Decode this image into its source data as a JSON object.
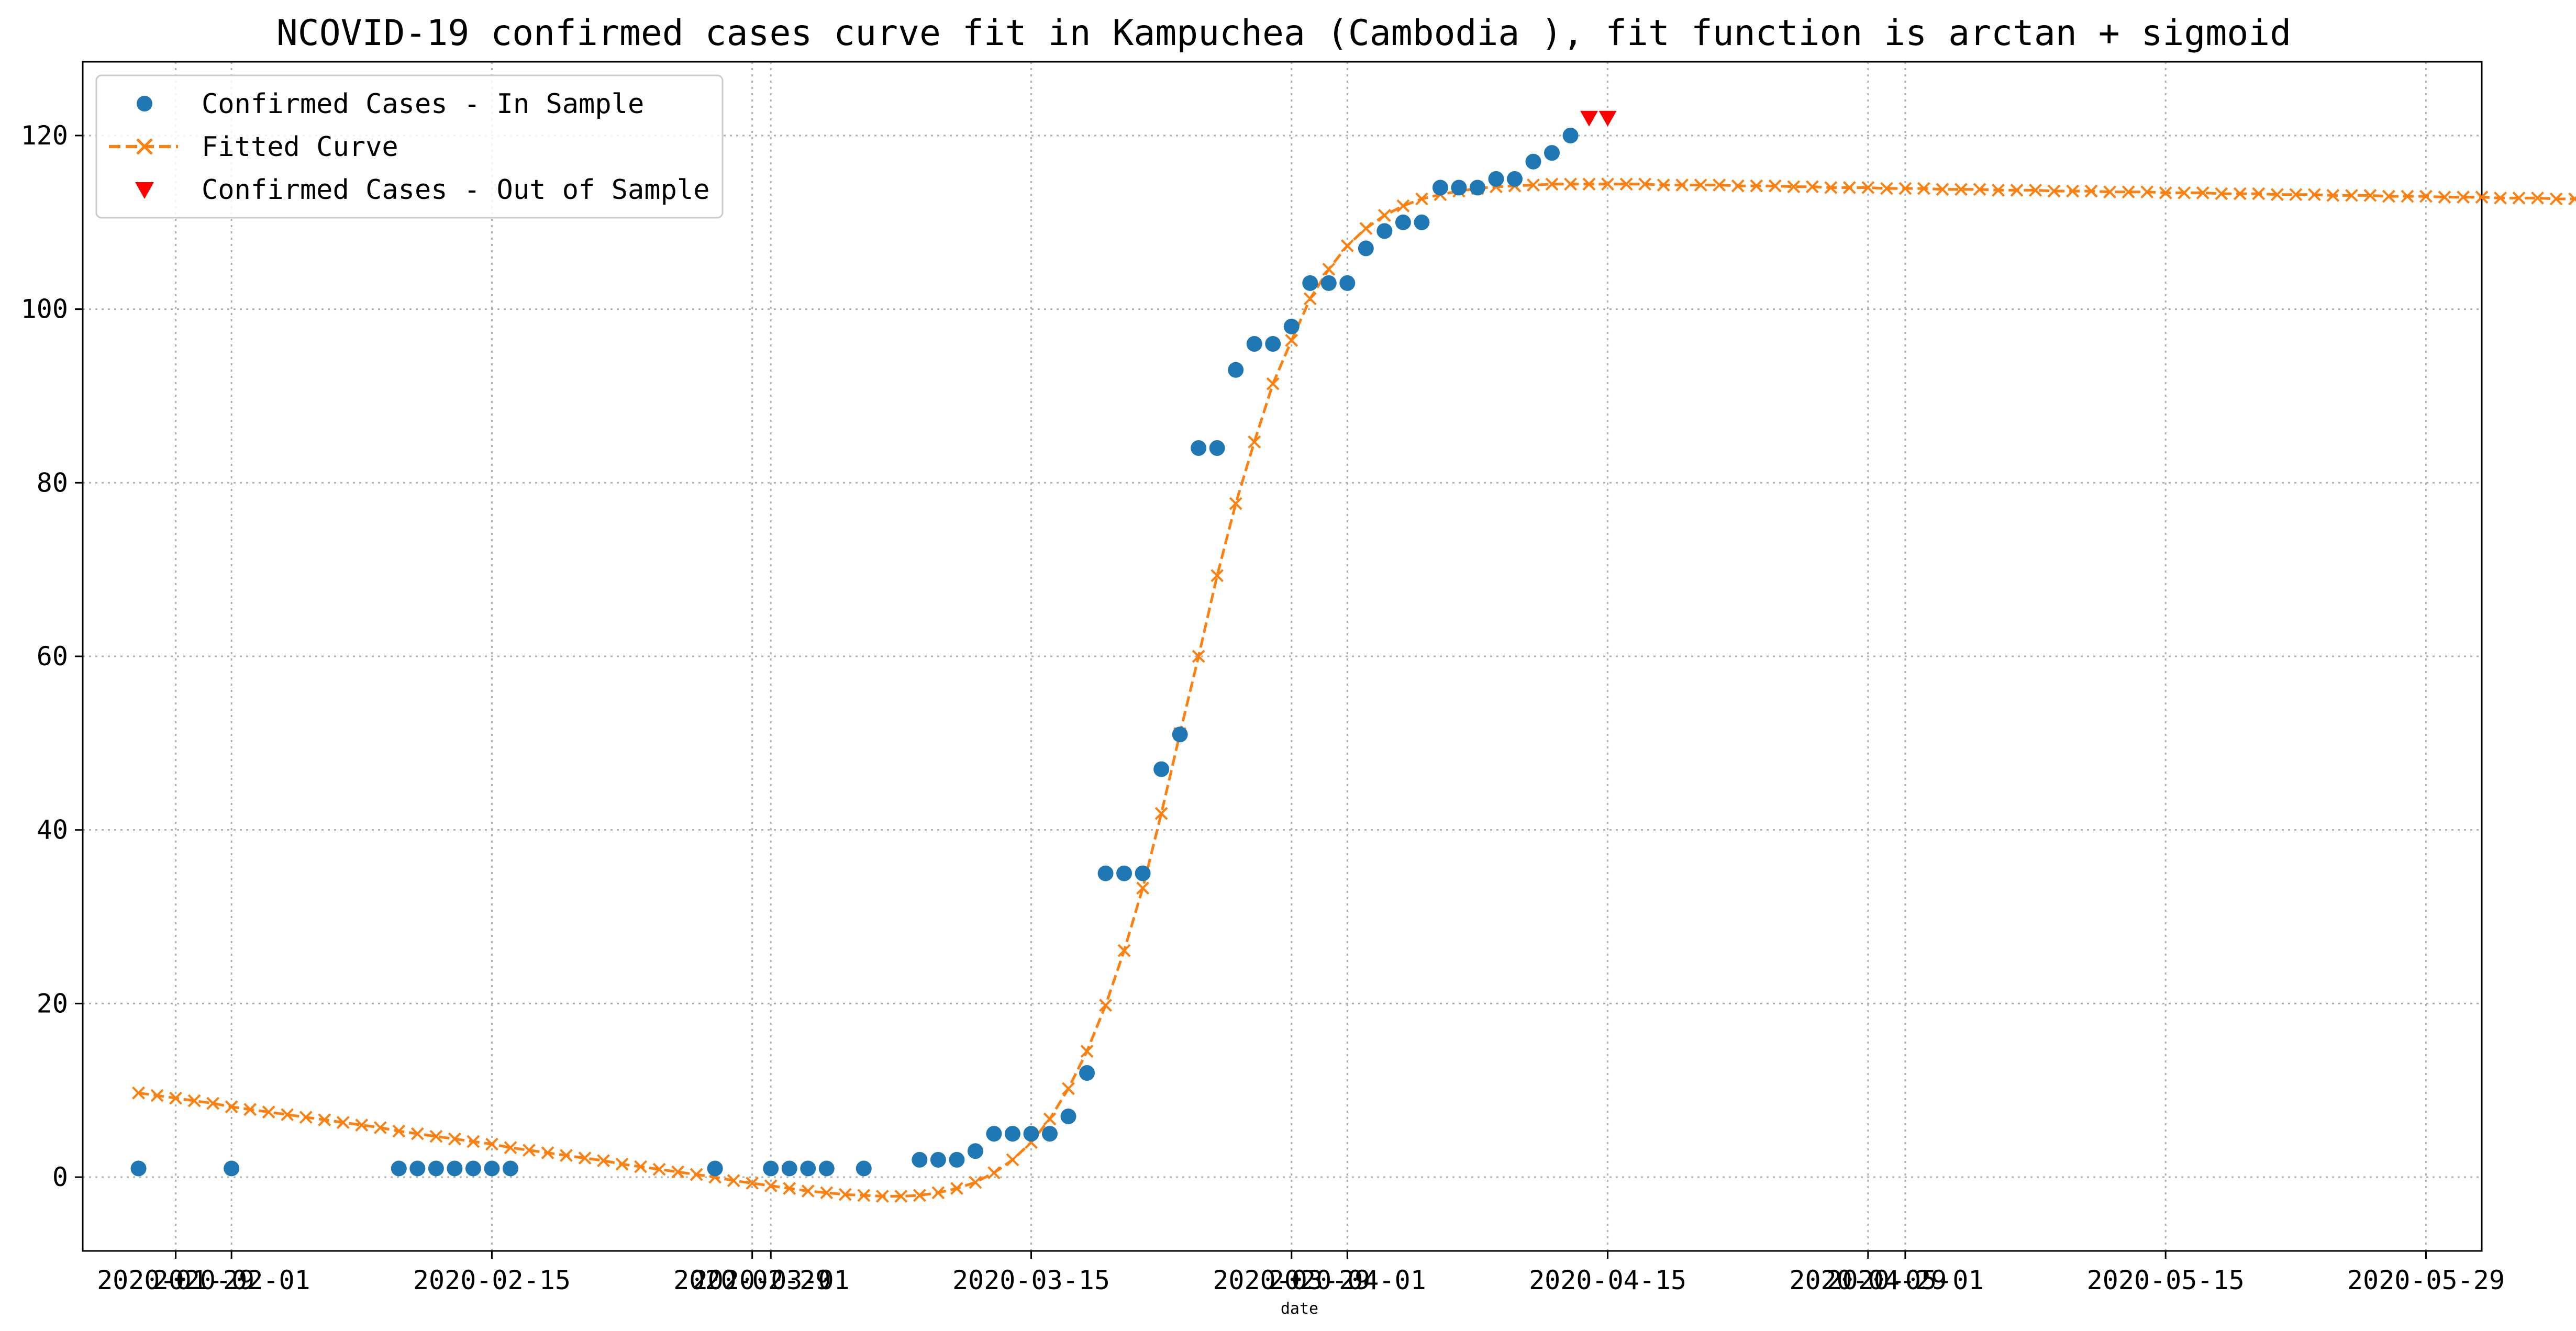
{
  "chart_data": {
    "type": "line",
    "title": "NCOVID-19 confirmed cases curve fit in Kampuchea (Cambodia ), fit function is arctan + sigmoid",
    "xlabel": "date",
    "ylabel": "",
    "xlim": [
      "2020-01-24",
      "2020-06-01"
    ],
    "ylim": [
      -8.5,
      128.5
    ],
    "grid": true,
    "legend_position": "top-left",
    "x_tick_labels": [
      "2020-01-29",
      "2020-02-01",
      "2020-02-15",
      "2020-02-29",
      "2020-03-01",
      "2020-03-15",
      "2020-03-29",
      "2020-04-01",
      "2020-04-15",
      "2020-04-29",
      "2020-05-01",
      "2020-05-15",
      "2020-05-29"
    ],
    "y_tick_labels": [
      "0",
      "20",
      "40",
      "60",
      "80",
      "100",
      "120"
    ],
    "y_ticks": [
      0,
      20,
      40,
      60,
      80,
      100,
      120
    ],
    "colors": {
      "in_sample": "#1f77b4",
      "fitted": "#ff7f0e",
      "out_of_sample": "#ff0000"
    },
    "series": [
      {
        "name": "Confirmed Cases - In Sample",
        "marker": "circle",
        "points": [
          [
            "2020-01-27",
            1
          ],
          [
            "2020-02-01",
            1
          ],
          [
            "2020-02-10",
            1
          ],
          [
            "2020-02-11",
            1
          ],
          [
            "2020-02-12",
            1
          ],
          [
            "2020-02-13",
            1
          ],
          [
            "2020-02-14",
            1
          ],
          [
            "2020-02-15",
            1
          ],
          [
            "2020-02-16",
            1
          ],
          [
            "2020-02-27",
            1
          ],
          [
            "2020-03-01",
            1
          ],
          [
            "2020-03-02",
            1
          ],
          [
            "2020-03-03",
            1
          ],
          [
            "2020-03-04",
            1
          ],
          [
            "2020-03-06",
            1
          ],
          [
            "2020-03-09",
            2
          ],
          [
            "2020-03-10",
            2
          ],
          [
            "2020-03-11",
            2
          ],
          [
            "2020-03-12",
            3
          ],
          [
            "2020-03-13",
            5
          ],
          [
            "2020-03-14",
            5
          ],
          [
            "2020-03-15",
            5
          ],
          [
            "2020-03-16",
            5
          ],
          [
            "2020-03-17",
            7
          ],
          [
            "2020-03-18",
            12
          ],
          [
            "2020-03-19",
            35
          ],
          [
            "2020-03-20",
            35
          ],
          [
            "2020-03-21",
            35
          ],
          [
            "2020-03-22",
            47
          ],
          [
            "2020-03-23",
            51
          ],
          [
            "2020-03-24",
            84
          ],
          [
            "2020-03-25",
            84
          ],
          [
            "2020-03-26",
            93
          ],
          [
            "2020-03-27",
            96
          ],
          [
            "2020-03-28",
            96
          ],
          [
            "2020-03-29",
            98
          ],
          [
            "2020-03-30",
            103
          ],
          [
            "2020-03-31",
            103
          ],
          [
            "2020-04-01",
            103
          ],
          [
            "2020-04-02",
            107
          ],
          [
            "2020-04-03",
            109
          ],
          [
            "2020-04-04",
            110
          ],
          [
            "2020-04-05",
            110
          ],
          [
            "2020-04-06",
            114
          ],
          [
            "2020-04-07",
            114
          ],
          [
            "2020-04-08",
            114
          ],
          [
            "2020-04-09",
            115
          ],
          [
            "2020-04-10",
            115
          ],
          [
            "2020-04-11",
            117
          ],
          [
            "2020-04-12",
            118
          ],
          [
            "2020-04-13",
            120
          ]
        ]
      },
      {
        "name": "Fitted Curve",
        "marker": "x",
        "line": "dashed",
        "x_start": "2020-01-27",
        "values": [
          9.7,
          9.4,
          9.1,
          8.8,
          8.5,
          8.1,
          7.8,
          7.5,
          7.2,
          6.9,
          6.6,
          6.3,
          6.0,
          5.7,
          5.3,
          5.0,
          4.7,
          4.4,
          4.1,
          3.8,
          3.4,
          3.1,
          2.8,
          2.5,
          2.2,
          1.9,
          1.5,
          1.2,
          0.9,
          0.6,
          0.3,
          0.0,
          -0.4,
          -0.7,
          -1.0,
          -1.3,
          -1.6,
          -1.8,
          -2.0,
          -2.1,
          -2.2,
          -2.2,
          -2.1,
          -1.8,
          -1.3,
          -0.6,
          0.5,
          2.0,
          4.0,
          6.7,
          10.2,
          14.5,
          19.8,
          26.1,
          33.3,
          41.9,
          51.1,
          60.0,
          69.3,
          77.6,
          84.7,
          91.4,
          96.4,
          101.2,
          104.6,
          107.3,
          109.3,
          110.8,
          111.9,
          112.7,
          113.2,
          113.6,
          113.9,
          114.1,
          114.2,
          114.3,
          114.4,
          114.4,
          114.4,
          114.4,
          114.4,
          114.4,
          114.3,
          114.3,
          114.3,
          114.3,
          114.2,
          114.2,
          114.2,
          114.1,
          114.1,
          114.0,
          114.0,
          114.0,
          113.9,
          113.9,
          113.9,
          113.8,
          113.8,
          113.8,
          113.7,
          113.7,
          113.7,
          113.6,
          113.6,
          113.6,
          113.5,
          113.5,
          113.5,
          113.4,
          113.4,
          113.4,
          113.3,
          113.3,
          113.3,
          113.2,
          113.2,
          113.2,
          113.1,
          113.1,
          113.1,
          113.0,
          113.0,
          113.0,
          112.9,
          112.9,
          112.9,
          112.8,
          112.8,
          112.8,
          112.7,
          112.7
        ]
      },
      {
        "name": "Confirmed Cases - Out of Sample",
        "marker": "triangle-down",
        "points": [
          [
            "2020-04-14",
            122
          ],
          [
            "2020-04-15",
            122
          ]
        ]
      }
    ]
  }
}
